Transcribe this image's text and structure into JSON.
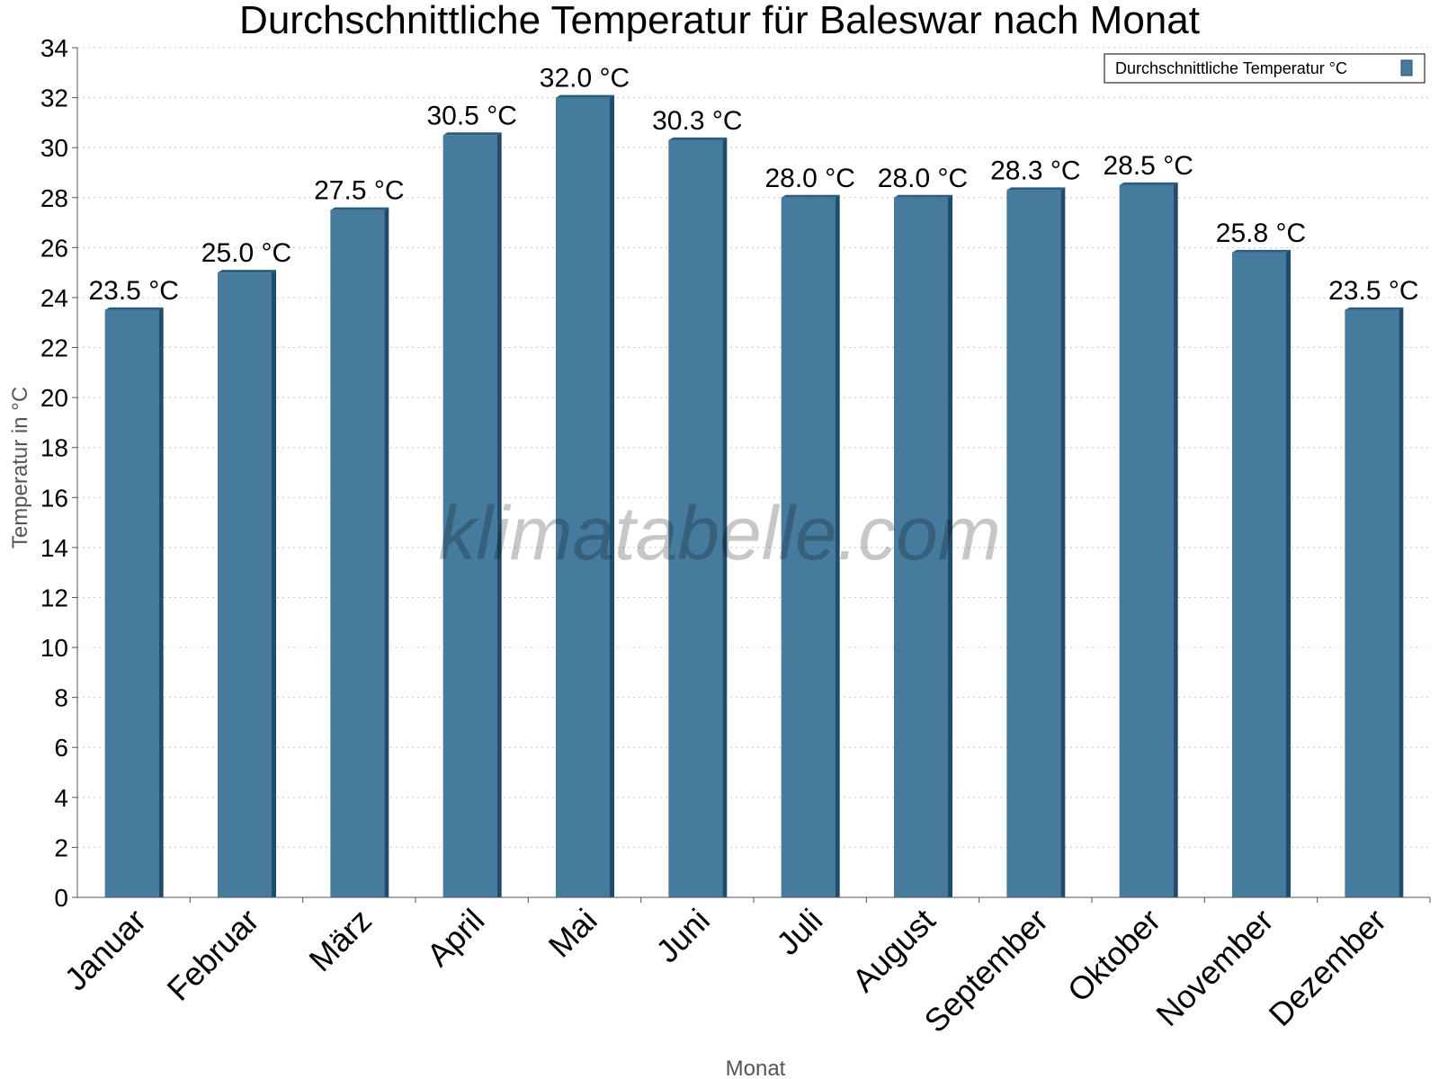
{
  "chart_data": {
    "type": "bar",
    "title": "Durchschnittliche Temperatur für Baleswar nach Monat",
    "xlabel": "Monat",
    "ylabel": "Temperatur in °C",
    "categories": [
      "Januar",
      "Februar",
      "März",
      "April",
      "Mai",
      "Juni",
      "Juli",
      "August",
      "September",
      "Oktober",
      "November",
      "Dezember"
    ],
    "series": [
      {
        "name": "Durchschnittliche Temperatur °C",
        "values": [
          23.5,
          25.0,
          27.5,
          30.5,
          32.0,
          30.3,
          28.0,
          28.0,
          28.3,
          28.5,
          25.8,
          23.5
        ],
        "labels": [
          "23.5 °C",
          "25.0 °C",
          "27.5 °C",
          "30.5 °C",
          "32.0 °C",
          "30.3 °C",
          "28.0 °C",
          "28.0 °C",
          "28.3 °C",
          "28.5 °C",
          "25.8 °C",
          "23.5 °C"
        ]
      }
    ],
    "ylim": [
      0,
      34
    ],
    "yticks": [
      "0",
      "2",
      "4",
      "6",
      "8",
      "10",
      "12",
      "14",
      "16",
      "18",
      "20",
      "22",
      "24",
      "26",
      "28",
      "30",
      "32",
      "34"
    ],
    "grid": true,
    "legend_position": "top-right",
    "watermark": "klimatabelle.com",
    "colors": {
      "bar": "#467b9e",
      "bar_side": "#1f4d6d",
      "bar_top": "#2b5d7e"
    }
  }
}
